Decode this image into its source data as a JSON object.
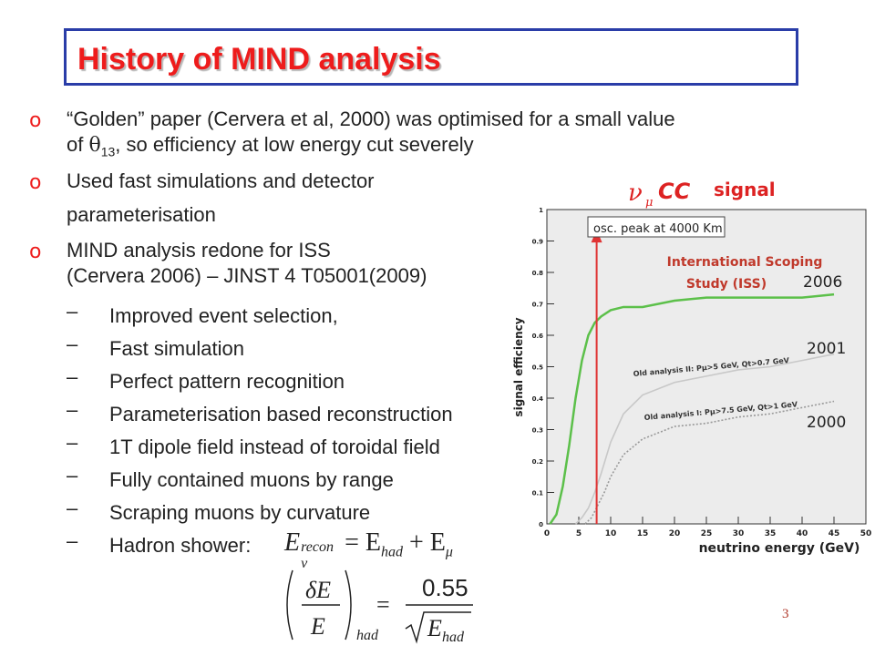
{
  "slide": {
    "title": "History of MIND analysis",
    "page_number": "3"
  },
  "bullets": [
    {
      "marker": "o",
      "lines": [
        "“Golden” paper (Cervera et al, 2000) was optimised for a small value",
        "of θ13, so efficiency at low energy cut severely"
      ]
    },
    {
      "marker": "o",
      "lines": [
        "Used fast simulations and detector",
        "parameterisation"
      ]
    },
    {
      "marker": "o",
      "lines": [
        "MIND analysis redone for ISS",
        "(Cervera 2006) – JINST 4 T05001(2009)"
      ]
    }
  ],
  "bullet1_line2": {
    "pre": "of ",
    "theta": "θ",
    "sub": "13",
    "post": ", so efficiency at low energy cut severely"
  },
  "sub_items": [
    "Improved event selection,",
    "Fast simulation",
    "Perfect pattern recognition",
    "Parameterisation based reconstruction",
    "1T dipole field instead of toroidal field",
    "Fully contained muons by range",
    "Scraping muons by curvature",
    "Hadron shower:"
  ],
  "sub_marker": "–",
  "equation": {
    "line1_lhs": "E",
    "line1_lhs_sup": "recon",
    "line1_lhs_sub": "ν",
    "line1_rhs": "= E",
    "line1_rhs_sub1": "had",
    "line1_plus": "+ E",
    "line1_rhs_sub2": "μ",
    "line2_num": "δE",
    "line2_den": "E",
    "line2_sub": "had",
    "line2_eq": "=",
    "line2_rhs_num": "0.55",
    "line2_rhs_den": "E",
    "line2_rhs_den_sub": "had"
  },
  "chart_data": {
    "type": "line",
    "title_prefix": "ν",
    "title_prefix_sub": "μ",
    "title_cc": "CC",
    "title_signal": "signal",
    "xlabel": "neutrino energy (GeV)",
    "ylabel": "signal efficiency",
    "xlim": [
      0,
      50
    ],
    "ylim": [
      0,
      1
    ],
    "x_ticks": [
      "0",
      "5",
      "10",
      "15",
      "20",
      "25",
      "30",
      "35",
      "40",
      "45",
      "50"
    ],
    "y_ticks": [
      "0",
      "0.1",
      "0.2",
      "0.3",
      "0.4",
      "0.5",
      "0.6",
      "0.7",
      "0.8",
      "0.9",
      "1"
    ],
    "annotation_peak": "osc. peak at 4000 Km",
    "peak_x": 7.8,
    "iss_label_1": "International Scoping",
    "iss_label_2": "Study (ISS)",
    "series": [
      {
        "name": "2006",
        "color": "#5cc04a",
        "style": "solid",
        "x": [
          0.5,
          1.5,
          2.5,
          3.5,
          4.5,
          5.5,
          6.5,
          7.5,
          8.5,
          10,
          12,
          15,
          20,
          25,
          30,
          35,
          40,
          45
        ],
        "y": [
          0.0,
          0.03,
          0.12,
          0.25,
          0.4,
          0.52,
          0.6,
          0.64,
          0.66,
          0.68,
          0.69,
          0.69,
          0.71,
          0.72,
          0.72,
          0.72,
          0.72,
          0.73
        ]
      },
      {
        "name": "2001",
        "color": "#c8c8c8",
        "style": "solid",
        "x": [
          4.5,
          5.5,
          6.5,
          7.5,
          8.5,
          10,
          12,
          15,
          20,
          25,
          30,
          35,
          40,
          45
        ],
        "y": [
          0.0,
          0.02,
          0.05,
          0.1,
          0.16,
          0.26,
          0.35,
          0.41,
          0.45,
          0.47,
          0.49,
          0.5,
          0.52,
          0.54
        ]
      },
      {
        "name": "2000",
        "color": "#999999",
        "style": "dotted",
        "x": [
          6,
          7,
          8,
          9,
          10,
          12,
          15,
          20,
          25,
          30,
          35,
          40,
          45
        ],
        "y": [
          0.0,
          0.02,
          0.06,
          0.1,
          0.15,
          0.22,
          0.27,
          0.31,
          0.32,
          0.34,
          0.35,
          0.37,
          0.39
        ]
      }
    ],
    "series_labels": {
      "s2006": "2006",
      "s2001": "2001",
      "s2000": "2000"
    },
    "old2_label": "Old analysis II: Pμ>5 GeV, Qt>0.7 GeV",
    "old1_label": "Old analysis I: Pμ>7.5 GeV, Qt>1 GeV",
    "colors": {
      "signal_red": "#dd2222",
      "peak_arrow": "#e03333",
      "iss_text": "#c0392b"
    }
  }
}
